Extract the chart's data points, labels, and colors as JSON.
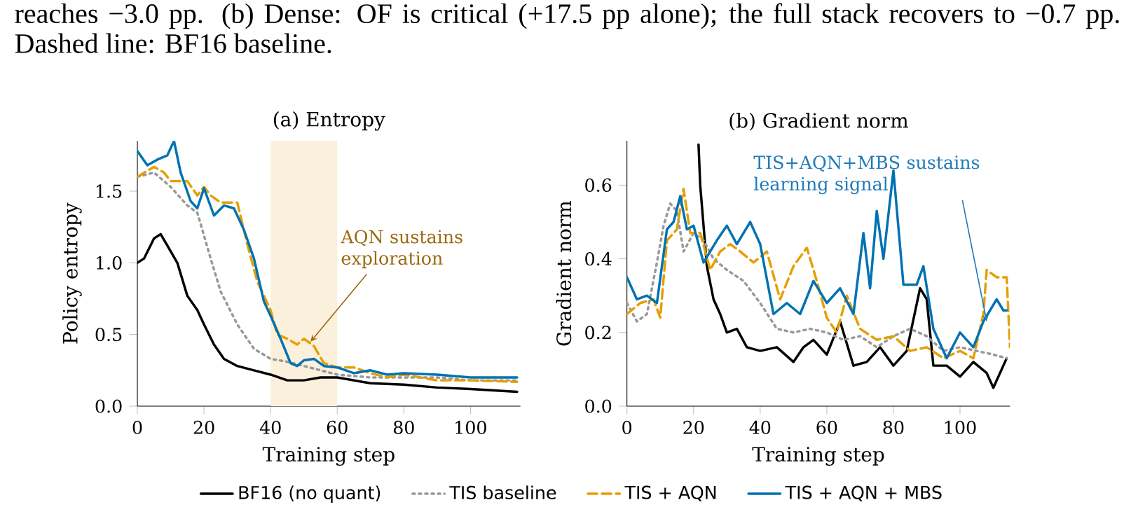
{
  "chart_data": [
    {
      "type": "line",
      "title": "(a) Entropy",
      "xlabel": "Training step",
      "ylabel": "Policy entropy",
      "xlim": [
        0,
        115
      ],
      "ylim": [
        0,
        1.85
      ],
      "xticks": [
        0,
        20,
        40,
        60,
        80,
        100
      ],
      "yticks": [
        {
          "value": 0,
          "label": "0.0"
        },
        {
          "value": 0.5,
          "label": "0.5"
        },
        {
          "value": 1.0,
          "label": "1.0"
        },
        {
          "value": 1.5,
          "label": "1.5"
        }
      ],
      "grid": false,
      "legend": "bottom",
      "bands": [
        {
          "axis": "x",
          "from": 40,
          "to": 60,
          "color": "#fbf0dc"
        }
      ],
      "annotations": [
        "reaches −3.0 pp. (b) Dense: OF is critical (+17.5 pp alone); the full stack recovers to −0.7 pp. Dashed line: BF16 baseline.",
        {
          "text": "AQN sustains exploration",
          "x": 52,
          "y": 0.45
        }
      ],
      "series": [
        {
          "name": "BF16 (no quant)",
          "color": "#000000",
          "line_style": "solid",
          "x": [
            0,
            2,
            5,
            7,
            9,
            12,
            15,
            18,
            20,
            23,
            26,
            30,
            35,
            40,
            45,
            50,
            55,
            60,
            70,
            80,
            90,
            100,
            114
          ],
          "values": [
            1.0,
            1.03,
            1.17,
            1.2,
            1.12,
            1.0,
            0.77,
            0.67,
            0.57,
            0.43,
            0.33,
            0.28,
            0.25,
            0.22,
            0.18,
            0.18,
            0.2,
            0.2,
            0.16,
            0.15,
            0.13,
            0.12,
            0.1
          ]
        },
        {
          "name": "TIS baseline",
          "color": "#999999",
          "line_style": "dotted",
          "x": [
            0,
            5,
            10,
            15,
            18,
            22,
            25,
            30,
            35,
            40,
            45,
            50,
            60,
            70,
            80,
            90,
            100,
            114
          ],
          "values": [
            1.6,
            1.63,
            1.53,
            1.4,
            1.35,
            1.03,
            0.8,
            0.57,
            0.4,
            0.33,
            0.31,
            0.28,
            0.22,
            0.2,
            0.2,
            0.2,
            0.18,
            0.18
          ]
        },
        {
          "name": "TIS + AQN",
          "color": "#e69f00",
          "line_style": "dashed",
          "x": [
            0,
            5,
            8,
            10,
            15,
            18,
            20,
            22,
            25,
            30,
            33,
            36,
            40,
            42,
            45,
            48,
            50,
            53,
            56,
            60,
            65,
            70,
            75,
            80,
            90,
            100,
            114
          ],
          "values": [
            1.6,
            1.67,
            1.63,
            1.57,
            1.57,
            1.47,
            1.53,
            1.47,
            1.42,
            1.42,
            1.13,
            0.87,
            0.67,
            0.5,
            0.47,
            0.43,
            0.47,
            0.42,
            0.3,
            0.27,
            0.27,
            0.23,
            0.2,
            0.22,
            0.18,
            0.18,
            0.17
          ]
        },
        {
          "name": "TIS + AQN + MBS",
          "color": "#0072b2",
          "line_style": "solid",
          "x": [
            0,
            3,
            6,
            9,
            11,
            13,
            16,
            18,
            20,
            23,
            26,
            29,
            32,
            35,
            38,
            40,
            43,
            46,
            48,
            50,
            53,
            56,
            60,
            65,
            70,
            75,
            80,
            90,
            100,
            114
          ],
          "values": [
            1.78,
            1.68,
            1.72,
            1.75,
            1.85,
            1.63,
            1.43,
            1.38,
            1.52,
            1.33,
            1.4,
            1.38,
            1.23,
            1.03,
            0.73,
            0.63,
            0.47,
            0.3,
            0.28,
            0.32,
            0.33,
            0.28,
            0.27,
            0.23,
            0.25,
            0.22,
            0.23,
            0.22,
            0.2,
            0.2
          ]
        }
      ]
    },
    {
      "type": "line",
      "title": "(b) Gradient norm",
      "xlabel": "Training step",
      "ylabel": "Gradient norm",
      "xlim": [
        0,
        115
      ],
      "ylim": [
        0,
        0.72
      ],
      "xticks": [
        0,
        20,
        40,
        60,
        80,
        100
      ],
      "yticks": [
        {
          "value": 0,
          "label": "0.0"
        },
        {
          "value": 0.2,
          "label": "0.2"
        },
        {
          "value": 0.4,
          "label": "0.4"
        },
        {
          "value": 0.6,
          "label": "0.6"
        }
      ],
      "grid": false,
      "annotations": [
        {
          "text": "TIS+AQN+MBS sustains learning signal",
          "x": 108,
          "y": 0.23
        }
      ],
      "series": [
        {
          "color": "#000000",
          "line_style": "solid",
          "x": [
            21.5,
            22,
            24,
            26,
            28,
            30,
            33,
            36,
            40,
            45,
            50,
            53,
            56,
            60,
            64,
            68,
            72,
            76,
            80,
            84,
            88,
            90,
            92,
            96,
            100,
            104,
            108,
            110,
            114
          ],
          "values": [
            0.71,
            0.6,
            0.38,
            0.29,
            0.25,
            0.2,
            0.21,
            0.16,
            0.15,
            0.16,
            0.12,
            0.16,
            0.18,
            0.14,
            0.23,
            0.11,
            0.12,
            0.16,
            0.11,
            0.15,
            0.32,
            0.29,
            0.11,
            0.11,
            0.08,
            0.12,
            0.09,
            0.05,
            0.13
          ]
        },
        {
          "color": "#999999",
          "line_style": "dotted",
          "x": [
            0,
            3,
            6,
            9,
            11,
            13,
            15,
            17,
            20,
            23,
            26,
            30,
            35,
            40,
            45,
            50,
            55,
            60,
            65,
            70,
            75,
            80,
            85,
            90,
            95,
            100,
            105,
            110,
            114
          ],
          "values": [
            0.28,
            0.23,
            0.25,
            0.39,
            0.49,
            0.55,
            0.53,
            0.42,
            0.47,
            0.45,
            0.4,
            0.37,
            0.34,
            0.28,
            0.21,
            0.2,
            0.21,
            0.2,
            0.18,
            0.19,
            0.16,
            0.19,
            0.21,
            0.19,
            0.15,
            0.16,
            0.15,
            0.14,
            0.13
          ]
        },
        {
          "color": "#e69f00",
          "line_style": "dashed",
          "x": [
            0,
            4,
            8,
            10,
            12,
            15,
            17,
            19,
            22,
            25,
            28,
            31,
            34,
            38,
            42,
            46,
            50,
            54,
            57,
            60,
            63,
            66,
            70,
            75,
            80,
            85,
            90,
            95,
            100,
            104,
            107,
            108,
            111,
            114,
            115
          ],
          "values": [
            0.25,
            0.28,
            0.29,
            0.24,
            0.45,
            0.48,
            0.59,
            0.47,
            0.47,
            0.37,
            0.42,
            0.44,
            0.42,
            0.39,
            0.42,
            0.29,
            0.38,
            0.43,
            0.34,
            0.24,
            0.2,
            0.3,
            0.21,
            0.18,
            0.19,
            0.15,
            0.16,
            0.13,
            0.15,
            0.13,
            0.25,
            0.37,
            0.35,
            0.35,
            0.16
          ]
        },
        {
          "color": "#0072b2",
          "line_style": "solid",
          "x": [
            0,
            3,
            6,
            9,
            12,
            14,
            16,
            18,
            20,
            23,
            27,
            30,
            33,
            37,
            40,
            44,
            48,
            52,
            56,
            60,
            64,
            68,
            71,
            73,
            75,
            77,
            80,
            83,
            87,
            89,
            92,
            96,
            100,
            104,
            107,
            109,
            111,
            113,
            114
          ],
          "values": [
            0.35,
            0.29,
            0.3,
            0.28,
            0.48,
            0.5,
            0.57,
            0.48,
            0.49,
            0.39,
            0.45,
            0.49,
            0.44,
            0.5,
            0.44,
            0.25,
            0.28,
            0.25,
            0.34,
            0.28,
            0.32,
            0.25,
            0.47,
            0.32,
            0.53,
            0.4,
            0.64,
            0.33,
            0.33,
            0.38,
            0.21,
            0.13,
            0.2,
            0.16,
            0.23,
            0.26,
            0.29,
            0.26,
            0.26
          ]
        }
      ]
    }
  ]
}
